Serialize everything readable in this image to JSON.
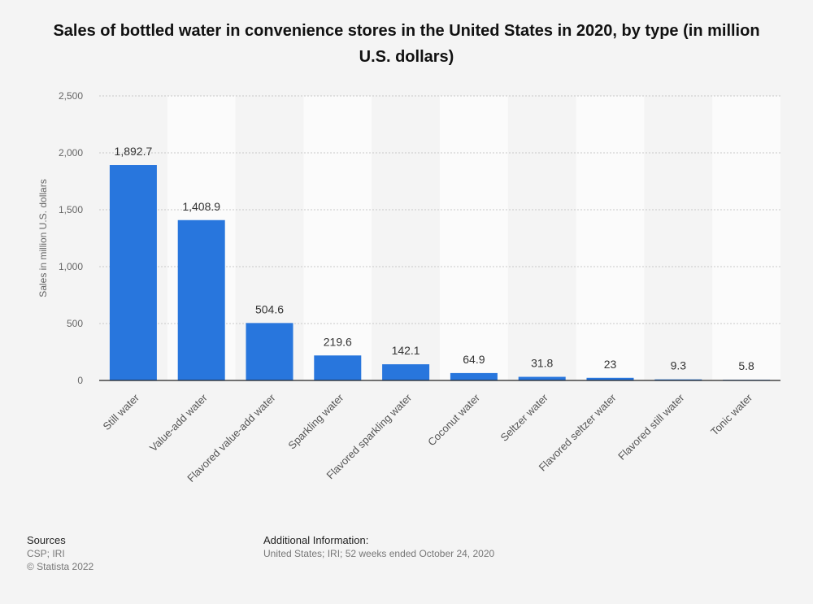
{
  "header": {
    "title": "Sales of bottled water in convenience stores in the United States in 2020, by type (in million U.S. dollars)"
  },
  "chart_data": {
    "type": "bar",
    "categories": [
      "Still water",
      "Value-add water",
      "Flavored value-add water",
      "Sparkling water",
      "Flavored sparkling water",
      "Coconut water",
      "Seltzer water",
      "Flavored seltzer water",
      "Flavored still water",
      "Tonic water"
    ],
    "values": [
      1892.7,
      1408.9,
      504.6,
      219.6,
      142.1,
      64.9,
      31.8,
      23,
      9.3,
      5.8
    ],
    "value_labels": [
      "1,892.7",
      "1,408.9",
      "504.6",
      "219.6",
      "142.1",
      "64.9",
      "31.8",
      "23",
      "9.3",
      "5.8"
    ],
    "ylabel": "Sales in million U.S. dollars",
    "xlabel": "",
    "ylim": [
      0,
      2500
    ],
    "yticks": [
      0,
      500,
      1000,
      1500,
      2000,
      2500
    ],
    "ytick_labels": [
      "0",
      "500",
      "1,000",
      "1,500",
      "2,000",
      "2,500"
    ],
    "grid": true,
    "colors": {
      "bar": "#2876dd",
      "band": "#fbfbfb",
      "grid": "#c8c8c8",
      "axis": "#222222"
    }
  },
  "footer": {
    "sources_heading": "Sources",
    "sources_line1": "CSP; IRI",
    "sources_line2": "© Statista 2022",
    "additional_heading": "Additional Information:",
    "additional_text": "United States; IRI; 52 weeks ended October 24, 2020"
  }
}
